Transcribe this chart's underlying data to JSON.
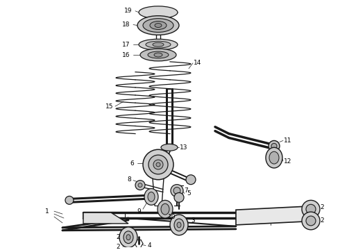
{
  "bg_color": "#ffffff",
  "line_color": "#1a1a1a",
  "label_color": "#000000",
  "label_fontsize": 6.5,
  "fig_w": 4.9,
  "fig_h": 3.6,
  "dpi": 100
}
